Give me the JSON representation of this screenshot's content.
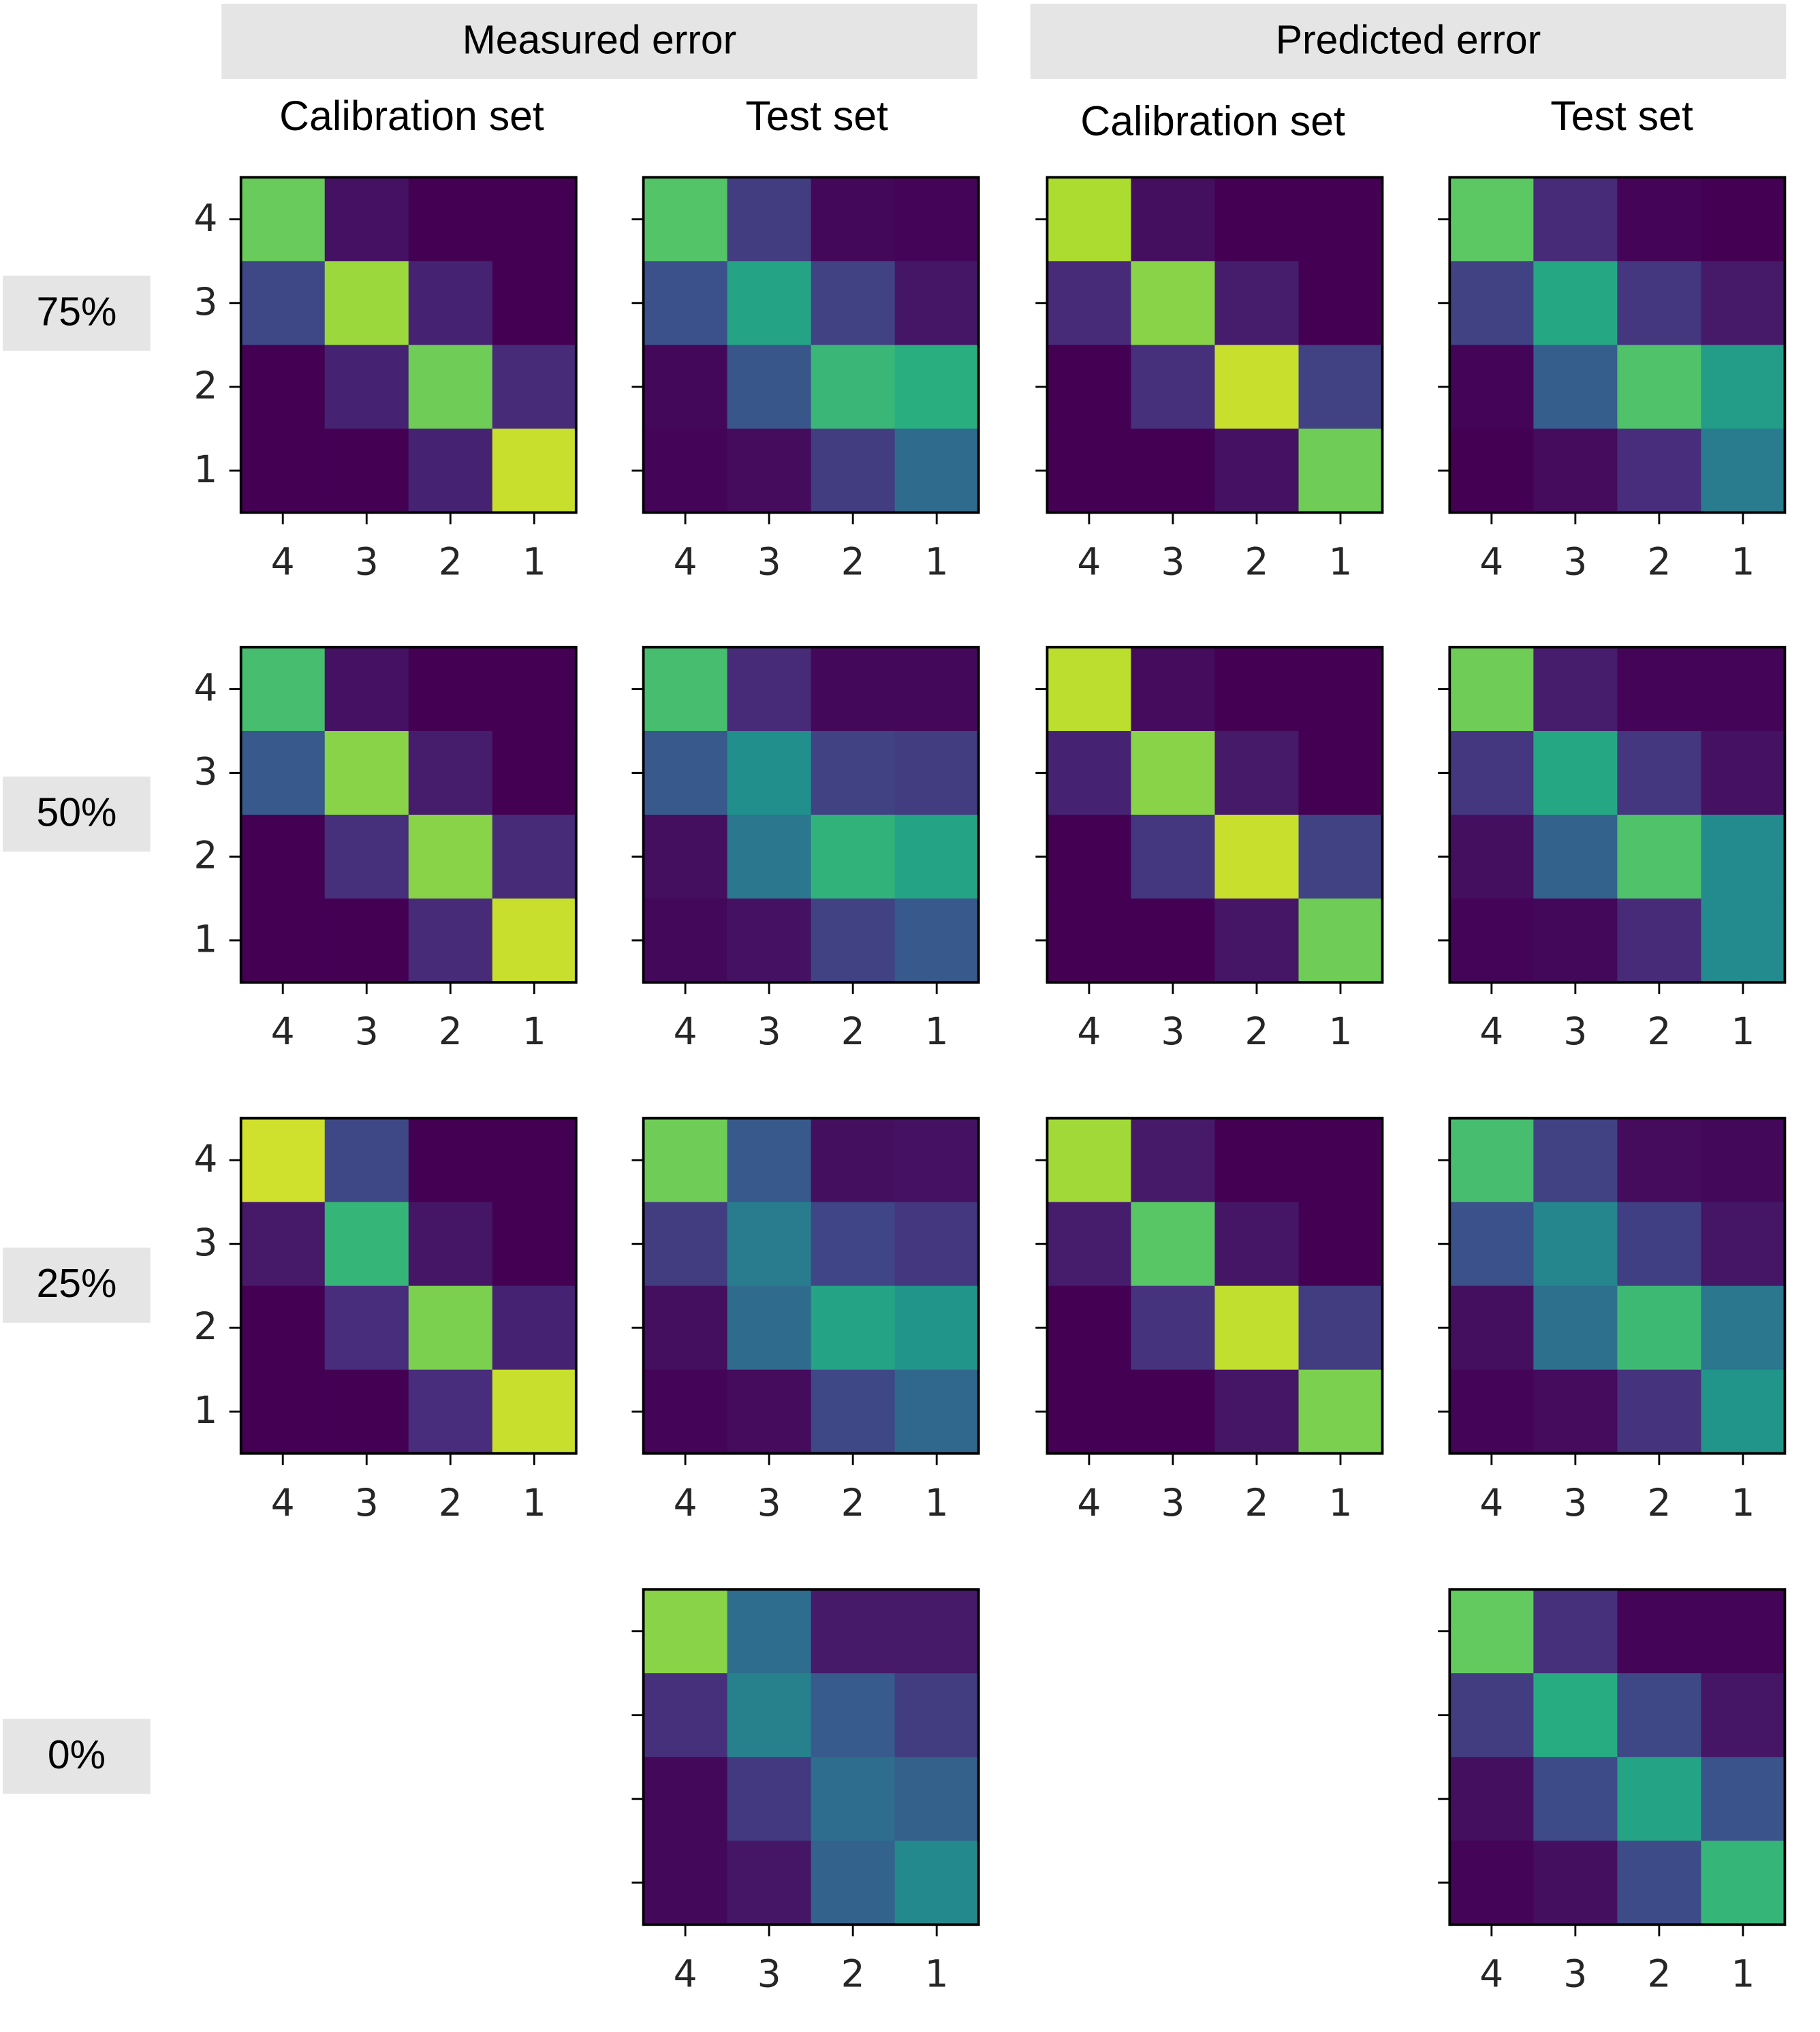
{
  "headers": {
    "groups": [
      "Measured error",
      "Predicted error"
    ],
    "columns": [
      "Calibration set",
      "Test set",
      "Calibration set",
      "Test set"
    ],
    "rows": [
      "75%",
      "50%",
      "25%",
      "0%"
    ]
  },
  "colors": {
    "header_bg": "#e5e5e5",
    "text": "#000000",
    "tick_text": "#262626"
  },
  "chart_data": {
    "type": "heatmap",
    "colormap": "viridis",
    "x_tick_labels": [
      "4",
      "3",
      "2",
      "1"
    ],
    "y_tick_labels": [
      "4",
      "3",
      "2",
      "1"
    ],
    "panels": [
      {
        "row": "75%",
        "group": "Measured error",
        "set": "Calibration set",
        "show_y_tick_labels": true,
        "values": [
          [
            0.77,
            0.05,
            0.0,
            0.0
          ],
          [
            0.22,
            0.85,
            0.1,
            0.0
          ],
          [
            0.0,
            0.1,
            0.78,
            0.12
          ],
          [
            0.0,
            0.0,
            0.1,
            0.92
          ]
        ]
      },
      {
        "row": "75%",
        "group": "Measured error",
        "set": "Test set",
        "show_y_tick_labels": false,
        "values": [
          [
            0.73,
            0.18,
            0.02,
            0.01
          ],
          [
            0.25,
            0.58,
            0.2,
            0.06
          ],
          [
            0.02,
            0.27,
            0.67,
            0.63
          ],
          [
            0.01,
            0.03,
            0.18,
            0.35
          ]
        ]
      },
      {
        "row": "75%",
        "group": "Predicted error",
        "set": "Calibration set",
        "show_y_tick_labels": false,
        "values": [
          [
            0.88,
            0.04,
            0.0,
            0.0
          ],
          [
            0.12,
            0.82,
            0.08,
            0.0
          ],
          [
            0.0,
            0.14,
            0.92,
            0.2
          ],
          [
            0.0,
            0.0,
            0.05,
            0.78
          ]
        ]
      },
      {
        "row": "75%",
        "group": "Predicted error",
        "set": "Test set",
        "show_y_tick_labels": false,
        "values": [
          [
            0.75,
            0.12,
            0.01,
            0.0
          ],
          [
            0.2,
            0.6,
            0.16,
            0.07
          ],
          [
            0.01,
            0.3,
            0.72,
            0.55
          ],
          [
            0.0,
            0.03,
            0.13,
            0.42
          ]
        ]
      },
      {
        "row": "50%",
        "group": "Measured error",
        "set": "Calibration set",
        "show_y_tick_labels": true,
        "values": [
          [
            0.7,
            0.05,
            0.0,
            0.0
          ],
          [
            0.28,
            0.82,
            0.08,
            0.0
          ],
          [
            0.0,
            0.14,
            0.82,
            0.12
          ],
          [
            0.0,
            0.0,
            0.12,
            0.92
          ]
        ]
      },
      {
        "row": "50%",
        "group": "Measured error",
        "set": "Test set",
        "show_y_tick_labels": false,
        "values": [
          [
            0.7,
            0.12,
            0.02,
            0.02
          ],
          [
            0.28,
            0.5,
            0.2,
            0.18
          ],
          [
            0.04,
            0.4,
            0.65,
            0.58
          ],
          [
            0.02,
            0.05,
            0.2,
            0.28
          ]
        ]
      },
      {
        "row": "50%",
        "group": "Predicted error",
        "set": "Calibration set",
        "show_y_tick_labels": false,
        "values": [
          [
            0.9,
            0.03,
            0.0,
            0.0
          ],
          [
            0.1,
            0.82,
            0.07,
            0.0
          ],
          [
            0.0,
            0.16,
            0.92,
            0.2
          ],
          [
            0.0,
            0.0,
            0.06,
            0.78
          ]
        ]
      },
      {
        "row": "50%",
        "group": "Predicted error",
        "set": "Test set",
        "show_y_tick_labels": false,
        "values": [
          [
            0.78,
            0.08,
            0.01,
            0.01
          ],
          [
            0.16,
            0.6,
            0.16,
            0.05
          ],
          [
            0.04,
            0.32,
            0.72,
            0.48
          ],
          [
            0.01,
            0.02,
            0.12,
            0.48
          ]
        ]
      },
      {
        "row": "25%",
        "group": "Measured error",
        "set": "Calibration set",
        "show_y_tick_labels": true,
        "values": [
          [
            0.93,
            0.22,
            0.0,
            0.0
          ],
          [
            0.07,
            0.66,
            0.06,
            0.0
          ],
          [
            0.0,
            0.13,
            0.8,
            0.1
          ],
          [
            0.0,
            0.0,
            0.13,
            0.92
          ]
        ]
      },
      {
        "row": "25%",
        "group": "Measured error",
        "set": "Test set",
        "show_y_tick_labels": false,
        "values": [
          [
            0.78,
            0.28,
            0.04,
            0.05
          ],
          [
            0.18,
            0.42,
            0.21,
            0.16
          ],
          [
            0.04,
            0.35,
            0.58,
            0.52
          ],
          [
            0.01,
            0.03,
            0.22,
            0.34
          ]
        ]
      },
      {
        "row": "25%",
        "group": "Predicted error",
        "set": "Calibration set",
        "show_y_tick_labels": false,
        "values": [
          [
            0.86,
            0.07,
            0.0,
            0.0
          ],
          [
            0.08,
            0.74,
            0.06,
            0.0
          ],
          [
            0.0,
            0.15,
            0.91,
            0.18
          ],
          [
            0.0,
            0.0,
            0.06,
            0.8
          ]
        ]
      },
      {
        "row": "25%",
        "group": "Predicted error",
        "set": "Test set",
        "show_y_tick_labels": false,
        "values": [
          [
            0.7,
            0.2,
            0.03,
            0.02
          ],
          [
            0.25,
            0.46,
            0.19,
            0.06
          ],
          [
            0.04,
            0.37,
            0.68,
            0.4
          ],
          [
            0.01,
            0.03,
            0.15,
            0.52
          ]
        ]
      },
      {
        "row": "0%",
        "group": "Measured error",
        "set": "Test set",
        "show_y_tick_labels": false,
        "values": [
          [
            0.82,
            0.36,
            0.07,
            0.07
          ],
          [
            0.14,
            0.44,
            0.29,
            0.18
          ],
          [
            0.02,
            0.17,
            0.36,
            0.31
          ],
          [
            0.02,
            0.06,
            0.32,
            0.47
          ]
        ]
      },
      {
        "row": "0%",
        "group": "Predicted error",
        "set": "Test set",
        "show_y_tick_labels": false,
        "values": [
          [
            0.76,
            0.14,
            0.01,
            0.01
          ],
          [
            0.18,
            0.62,
            0.22,
            0.06
          ],
          [
            0.04,
            0.23,
            0.58,
            0.26
          ],
          [
            0.01,
            0.04,
            0.23,
            0.66
          ]
        ]
      }
    ]
  }
}
